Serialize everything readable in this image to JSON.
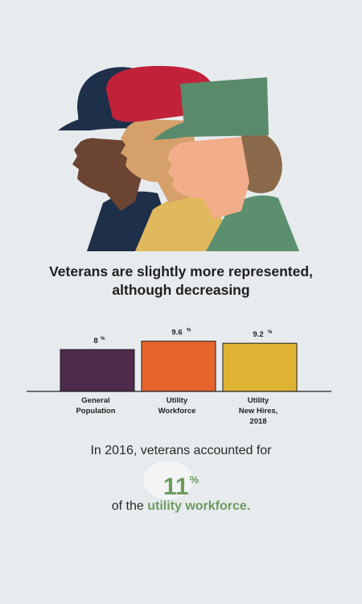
{
  "headline": {
    "line1": "Veterans are slightly more represented,",
    "line2": "although decreasing"
  },
  "chart_data": {
    "type": "bar",
    "categories": [
      [
        "General",
        "Population"
      ],
      [
        "Utility",
        "Workforce"
      ],
      [
        "Utility",
        "New Hires,",
        "2018"
      ]
    ],
    "values": [
      8,
      9.6,
      9.2
    ],
    "value_labels": [
      "8",
      "9.6",
      "9.2"
    ],
    "value_unit": "%",
    "colors": [
      "#4e2a4c",
      "#e5652c",
      "#e0b233"
    ],
    "ylim": [
      0,
      10
    ],
    "grid": false,
    "title": "",
    "xlabel": "",
    "ylabel": ""
  },
  "stat": {
    "line1": "In 2016, veterans accounted for",
    "number": "11",
    "unit": "%",
    "line3_prefix": "of the ",
    "line3_emphasis": "utility workforce."
  },
  "colors": {
    "background": "#e7ebee",
    "accent_green": "#6e9a5f"
  },
  "illustration": {
    "icon": "three-veterans-profile-icon"
  }
}
